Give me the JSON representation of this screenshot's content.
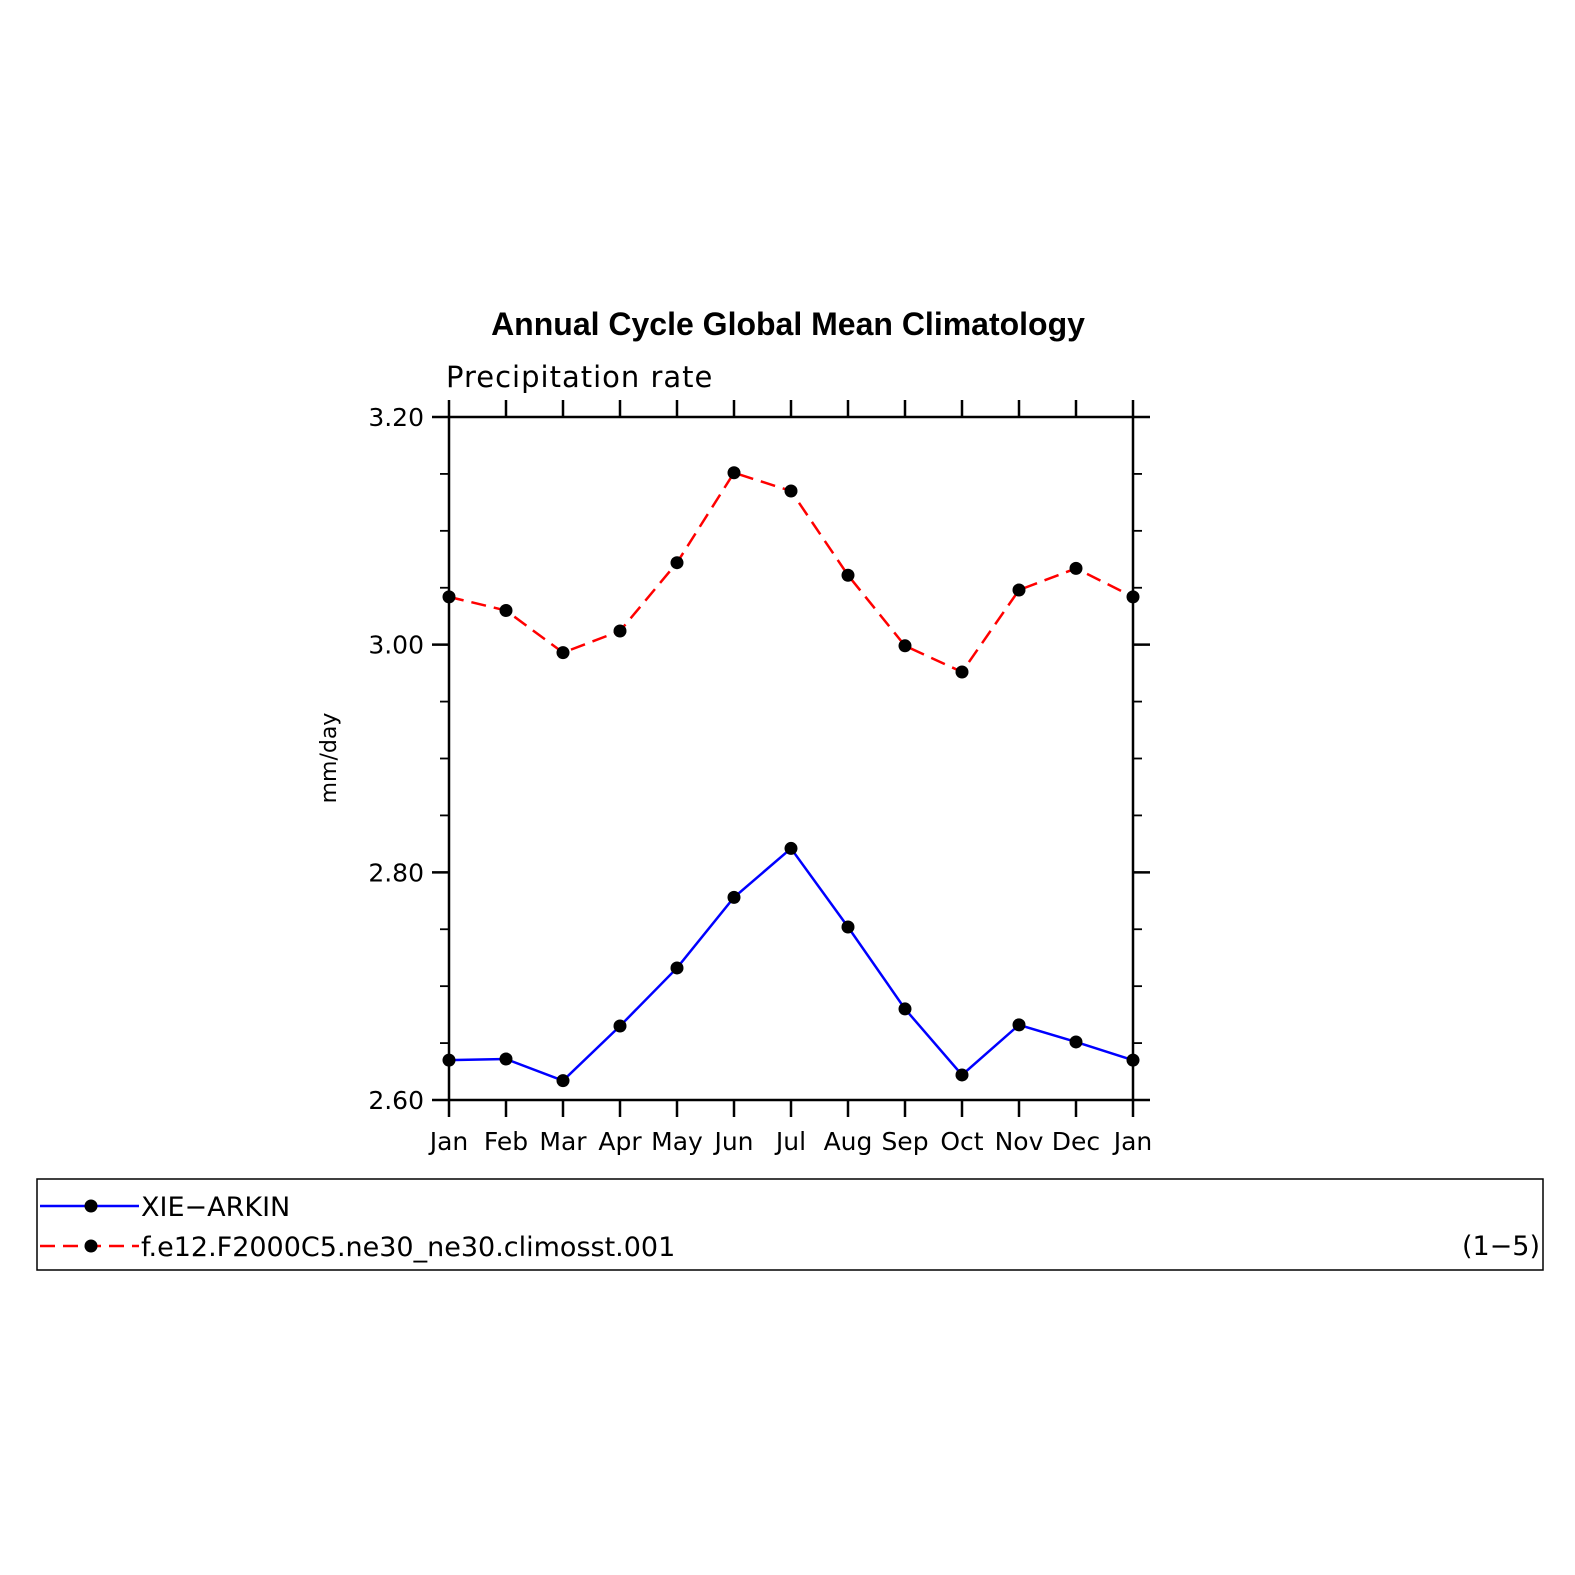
{
  "chart_data": {
    "type": "line",
    "title": "Annual Cycle Global Mean Climatology",
    "subtitle": "Precipitation rate",
    "xlabel": "",
    "ylabel": "mm/day",
    "categories": [
      "Jan",
      "Feb",
      "Mar",
      "Apr",
      "May",
      "Jun",
      "Jul",
      "Aug",
      "Sep",
      "Oct",
      "Nov",
      "Dec",
      "Jan"
    ],
    "ylim": [
      2.6,
      3.2
    ],
    "yticks": [
      "2.60",
      "2.80",
      "3.00",
      "3.20"
    ],
    "yminor_step": 0.05,
    "grid": false,
    "legend_position": "bottom",
    "panel_label": "(1−5)",
    "series": [
      {
        "name": "XIE−ARKIN",
        "color": "#0000ff",
        "dash": "solid",
        "values": [
          2.635,
          2.636,
          2.617,
          2.665,
          2.716,
          2.778,
          2.821,
          2.752,
          2.68,
          2.622,
          2.666,
          2.651,
          2.635
        ]
      },
      {
        "name": "f.e12.F2000C5.ne30_ne30.climosst.001",
        "color": "#ff0000",
        "dash": "dashed",
        "values": [
          3.042,
          3.03,
          2.993,
          3.012,
          3.072,
          3.151,
          3.135,
          3.061,
          2.999,
          2.976,
          3.048,
          3.067,
          3.042
        ]
      }
    ]
  }
}
